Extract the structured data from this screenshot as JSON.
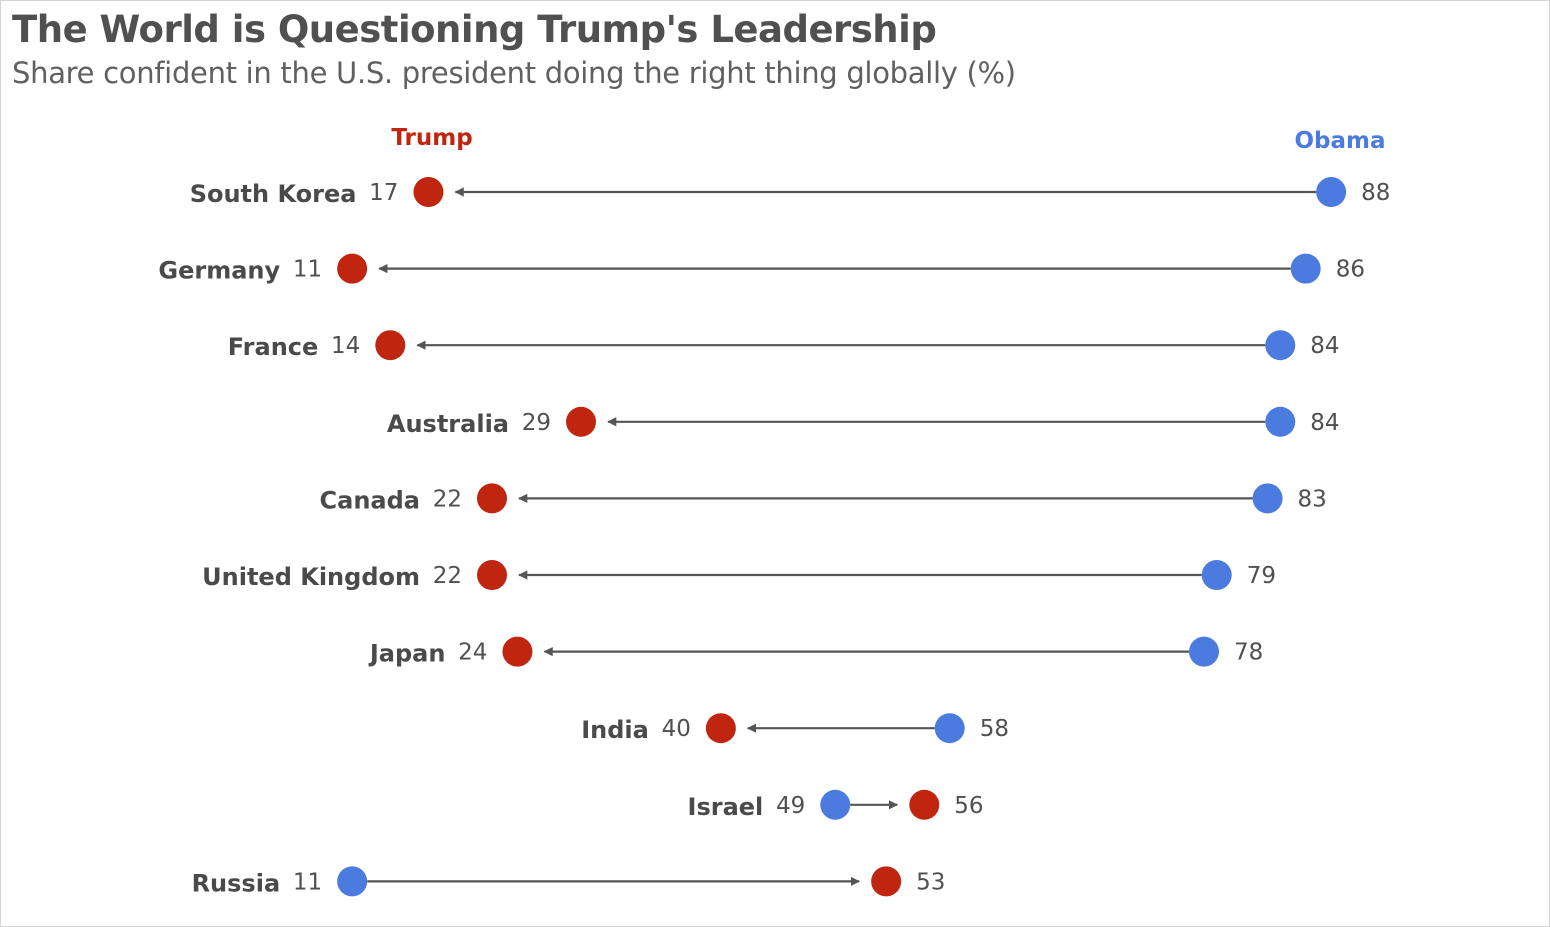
{
  "title": "The World is Questioning Trump's Leadership",
  "subtitle": "Share confident in the U.S. president doing the right thing globally (%)",
  "colors": {
    "trump": "#c0250f",
    "obama": "#4c7be0",
    "arrow": "#555555"
  },
  "chart_data": {
    "type": "dot-arrow",
    "legend": {
      "trump": "Trump",
      "obama": "Obama"
    },
    "series": [
      {
        "name": "Trump",
        "values": [
          17,
          11,
          14,
          29,
          22,
          22,
          24,
          40,
          56,
          53
        ]
      },
      {
        "name": "Obama",
        "values": [
          88,
          86,
          84,
          84,
          83,
          79,
          78,
          58,
          49,
          11
        ]
      }
    ],
    "rows": [
      {
        "country": "South Korea",
        "trump": 17,
        "obama": 88,
        "trump_label": "17",
        "obama_label": "88"
      },
      {
        "country": "Germany",
        "trump": 11,
        "obama": 86,
        "trump_label": "11",
        "obama_label": "86"
      },
      {
        "country": "France",
        "trump": 14,
        "obama": 84,
        "trump_label": "14",
        "obama_label": "84"
      },
      {
        "country": "Australia",
        "trump": 29,
        "obama": 84,
        "trump_label": "29",
        "obama_label": "84"
      },
      {
        "country": "Canada",
        "trump": 22,
        "obama": 83,
        "trump_label": "22",
        "obama_label": "83"
      },
      {
        "country": "United Kingdom",
        "trump": 22,
        "obama": 79,
        "trump_label": "22",
        "obama_label": "79"
      },
      {
        "country": "Japan",
        "trump": 24,
        "obama": 78,
        "trump_label": "24",
        "obama_label": "78"
      },
      {
        "country": "India",
        "trump": 40,
        "obama": 58,
        "trump_label": "40",
        "obama_label": "58"
      },
      {
        "country": "Israel",
        "trump": 56,
        "obama": 49,
        "trump_label": "56",
        "obama_label": "49"
      },
      {
        "country": "Russia",
        "trump": 53,
        "obama": 11,
        "trump_label": "53",
        "obama_label": "11"
      }
    ],
    "arrow_direction": "from Obama to Trump",
    "grid": false
  }
}
